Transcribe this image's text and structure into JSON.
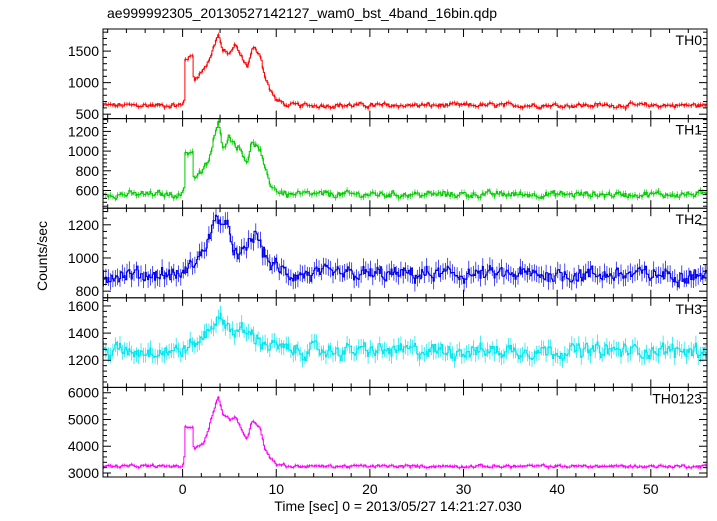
{
  "chart_data": {
    "type": "line",
    "title": "ae999992305_20130527142127_wam0_bst_4band_16bin.qdp",
    "xlabel": "Time [sec] 0 = 2013/05/27 14:21:27.030",
    "ylabel": "Counts/sec",
    "xlim": [
      -8.5,
      56
    ],
    "x_ticks": [
      0,
      10,
      20,
      30,
      40,
      50
    ],
    "series": [
      {
        "name": "TH0",
        "color": "#ff0000",
        "ylim": [
          430,
          1850
        ],
        "yticks": [
          500,
          1000,
          1500
        ],
        "baseline": 640,
        "noise": 45,
        "errbar": 35,
        "burst": [
          [
            0.0,
            640
          ],
          [
            0.2,
            720
          ],
          [
            0.3,
            1380
          ],
          [
            1.1,
            1420
          ],
          [
            1.2,
            1050
          ],
          [
            2.2,
            1200
          ],
          [
            2.8,
            1350
          ],
          [
            3.3,
            1550
          ],
          [
            3.8,
            1780
          ],
          [
            4.3,
            1500
          ],
          [
            5.0,
            1450
          ],
          [
            5.6,
            1600
          ],
          [
            6.3,
            1400
          ],
          [
            6.9,
            1250
          ],
          [
            7.5,
            1550
          ],
          [
            8.3,
            1450
          ],
          [
            8.8,
            1100
          ],
          [
            9.3,
            900
          ],
          [
            10.0,
            720
          ],
          [
            11.0,
            660
          ]
        ]
      },
      {
        "name": "TH1",
        "color": "#00cc00",
        "ylim": [
          420,
          1330
        ],
        "yticks": [
          600,
          800,
          1000,
          1200
        ],
        "baseline": 560,
        "noise": 40,
        "errbar": 30,
        "burst": [
          [
            0.0,
            560
          ],
          [
            0.2,
            640
          ],
          [
            0.3,
            980
          ],
          [
            1.1,
            1000
          ],
          [
            1.2,
            720
          ],
          [
            2.2,
            800
          ],
          [
            2.8,
            900
          ],
          [
            3.3,
            1100
          ],
          [
            3.8,
            1280
          ],
          [
            4.3,
            1050
          ],
          [
            5.0,
            1150
          ],
          [
            5.6,
            1080
          ],
          [
            6.3,
            1000
          ],
          [
            6.9,
            900
          ],
          [
            7.5,
            1100
          ],
          [
            8.3,
            1000
          ],
          [
            8.8,
            800
          ],
          [
            9.3,
            680
          ],
          [
            10.0,
            600
          ],
          [
            11.0,
            570
          ]
        ]
      },
      {
        "name": "TH2",
        "color": "#0000ee",
        "ylim": [
          760,
          1300
        ],
        "yticks": [
          800,
          1000,
          1200
        ],
        "baseline": 900,
        "noise": 55,
        "errbar": 50,
        "burst": [
          [
            0.0,
            900
          ],
          [
            1.0,
            960
          ],
          [
            2.0,
            1020
          ],
          [
            3.0,
            1150
          ],
          [
            3.8,
            1250
          ],
          [
            4.5,
            1200
          ],
          [
            5.3,
            1100
          ],
          [
            6.0,
            980
          ],
          [
            7.0,
            1080
          ],
          [
            7.8,
            1150
          ],
          [
            8.5,
            1050
          ],
          [
            9.5,
            960
          ],
          [
            11.0,
            910
          ]
        ]
      },
      {
        "name": "TH3",
        "color": "#00e5ee",
        "ylim": [
          1000,
          1660
        ],
        "yticks": [
          1200,
          1400,
          1600
        ],
        "baseline": 1270,
        "noise": 65,
        "errbar": 55,
        "burst": [
          [
            0.0,
            1270
          ],
          [
            2.0,
            1350
          ],
          [
            3.5,
            1500
          ],
          [
            4.5,
            1480
          ],
          [
            5.5,
            1420
          ],
          [
            7.0,
            1400
          ],
          [
            9.0,
            1320
          ],
          [
            11.0,
            1280
          ]
        ]
      },
      {
        "name": "TH0123",
        "color": "#ff00ff",
        "ylim": [
          2850,
          6200
        ],
        "yticks": [
          3000,
          4000,
          5000,
          6000
        ],
        "baseline": 3250,
        "noise": 70,
        "errbar": 60,
        "burst": [
          [
            0.0,
            3250
          ],
          [
            0.2,
            3600
          ],
          [
            0.3,
            4700
          ],
          [
            1.1,
            4750
          ],
          [
            1.2,
            3900
          ],
          [
            2.2,
            4100
          ],
          [
            2.8,
            4700
          ],
          [
            3.3,
            5300
          ],
          [
            3.8,
            5900
          ],
          [
            4.3,
            5200
          ],
          [
            5.0,
            5000
          ],
          [
            5.6,
            5100
          ],
          [
            6.3,
            4600
          ],
          [
            6.9,
            4300
          ],
          [
            7.5,
            5000
          ],
          [
            8.3,
            4700
          ],
          [
            8.8,
            3900
          ],
          [
            9.3,
            3600
          ],
          [
            10.0,
            3350
          ],
          [
            11.0,
            3280
          ]
        ]
      }
    ]
  }
}
